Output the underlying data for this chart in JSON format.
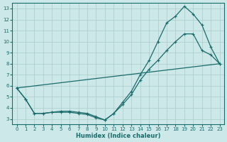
{
  "xlabel": "Humidex (Indice chaleur)",
  "bg_color": "#cce8e8",
  "grid_color": "#aacccc",
  "line_color": "#1a6b6b",
  "xlim": [
    -0.5,
    23.5
  ],
  "ylim": [
    2.5,
    13.5
  ],
  "xticks": [
    0,
    1,
    2,
    3,
    4,
    5,
    6,
    7,
    8,
    9,
    10,
    11,
    12,
    13,
    14,
    15,
    16,
    17,
    18,
    19,
    20,
    21,
    22,
    23
  ],
  "yticks": [
    3,
    4,
    5,
    6,
    7,
    8,
    9,
    10,
    11,
    12,
    13
  ],
  "line1_x": [
    0,
    1,
    2,
    3,
    4,
    5,
    6,
    7,
    8,
    9,
    10,
    11,
    12,
    13,
    14,
    15,
    16,
    17,
    18,
    19,
    20,
    21,
    22,
    23
  ],
  "line1_y": [
    5.8,
    4.8,
    3.5,
    3.5,
    3.6,
    3.6,
    3.6,
    3.5,
    3.4,
    3.1,
    2.9,
    3.5,
    4.5,
    5.5,
    7.0,
    8.3,
    10.0,
    11.7,
    12.3,
    13.2,
    12.5,
    11.5,
    9.5,
    8.0
  ],
  "line2_x": [
    0,
    1,
    2,
    3,
    4,
    5,
    6,
    7,
    8,
    9,
    10,
    11,
    12,
    13,
    14,
    15,
    16,
    17,
    18,
    19,
    20,
    21,
    22,
    23
  ],
  "line2_y": [
    5.8,
    4.8,
    3.5,
    3.5,
    3.6,
    3.7,
    3.7,
    3.6,
    3.5,
    3.2,
    2.9,
    3.5,
    4.3,
    5.2,
    6.5,
    7.5,
    8.3,
    9.2,
    10.0,
    10.7,
    10.7,
    9.2,
    8.8,
    8.0
  ],
  "line3_x": [
    0,
    23
  ],
  "line3_y": [
    5.8,
    8.0
  ]
}
